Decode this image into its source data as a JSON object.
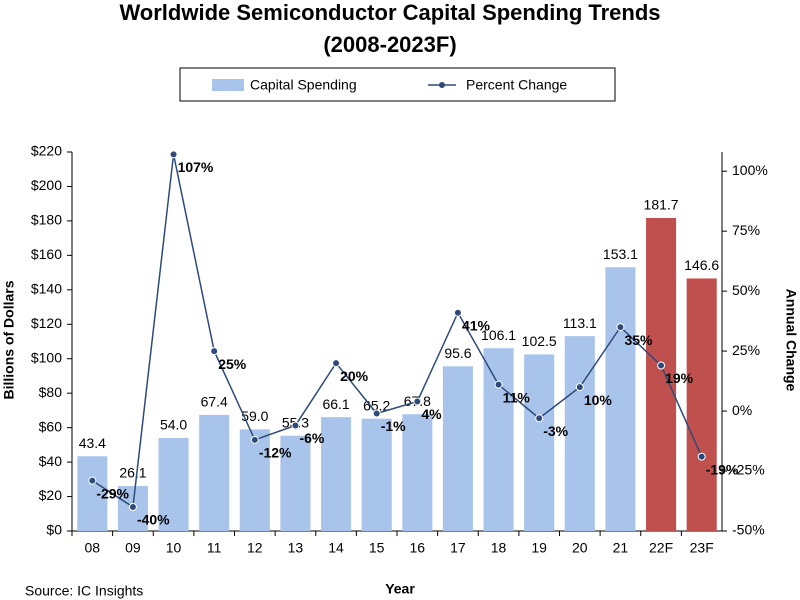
{
  "chart_data": {
    "type": "bar",
    "title": "Worldwide Semiconductor Capital Spending Trends",
    "subtitle": "(2008-2023F)",
    "x_label": "Year",
    "y_label": "Billions of Dollars",
    "y2_label": "Annual Change",
    "source": "Source: IC Insights",
    "categories": [
      "08",
      "09",
      "10",
      "11",
      "12",
      "13",
      "14",
      "15",
      "16",
      "17",
      "18",
      "19",
      "20",
      "21",
      "22F",
      "23F"
    ],
    "series": [
      {
        "name": "Capital Spending",
        "type": "bar",
        "color": "#a9c4eb",
        "colors": [
          "#a9c4eb",
          "#a9c4eb",
          "#a9c4eb",
          "#a9c4eb",
          "#a9c4eb",
          "#a9c4eb",
          "#a9c4eb",
          "#a9c4eb",
          "#a9c4eb",
          "#a9c4eb",
          "#a9c4eb",
          "#a9c4eb",
          "#a9c4eb",
          "#a9c4eb",
          "#c0504d",
          "#c0504d"
        ],
        "values": [
          43.4,
          26.1,
          54.0,
          67.4,
          59.0,
          55.3,
          66.1,
          65.2,
          67.8,
          95.6,
          106.1,
          102.5,
          113.1,
          153.1,
          181.7,
          146.6
        ],
        "value_labels": [
          "43.4",
          "26.1",
          "54.0",
          "67.4",
          "59.0",
          "55.3",
          "66.1",
          "65.2",
          "67.8",
          "95.6",
          "106.1",
          "102.5",
          "113.1",
          "153.1",
          "181.7",
          "146.6"
        ]
      },
      {
        "name": "Percent Change",
        "type": "line",
        "axis": "y2",
        "color": "#2e4a7a",
        "values": [
          -29,
          -40,
          107,
          25,
          -12,
          -6,
          20,
          -1,
          4,
          41,
          11,
          -3,
          10,
          35,
          19,
          -19
        ],
        "value_labels": [
          "-29%",
          "-40%",
          "107%",
          "25%",
          "-12%",
          "-6%",
          "20%",
          "-1%",
          "4%",
          "41%",
          "11%",
          "-3%",
          "10%",
          "35%",
          "19%",
          "-19%"
        ]
      }
    ],
    "ylim": [
      0,
      220
    ],
    "yticks": [
      {
        "value": 0,
        "label": "$0"
      },
      {
        "value": 20,
        "label": "$20"
      },
      {
        "value": 40,
        "label": "$40"
      },
      {
        "value": 60,
        "label": "$60"
      },
      {
        "value": 80,
        "label": "$80"
      },
      {
        "value": 100,
        "label": "$100"
      },
      {
        "value": 120,
        "label": "$120"
      },
      {
        "value": 140,
        "label": "$140"
      },
      {
        "value": 160,
        "label": "$160"
      },
      {
        "value": 180,
        "label": "$180"
      },
      {
        "value": 200,
        "label": "$200"
      },
      {
        "value": 220,
        "label": "$220"
      }
    ],
    "y2lim": [
      -50,
      108
    ],
    "y2ticks": [
      {
        "value": -50,
        "label": "-50%"
      },
      {
        "value": -25,
        "label": "-25%"
      },
      {
        "value": 0,
        "label": "0%"
      },
      {
        "value": 25,
        "label": "25%"
      },
      {
        "value": 50,
        "label": "50%"
      },
      {
        "value": 75,
        "label": "75%"
      },
      {
        "value": 100,
        "label": "100%"
      }
    ],
    "grid": false
  }
}
